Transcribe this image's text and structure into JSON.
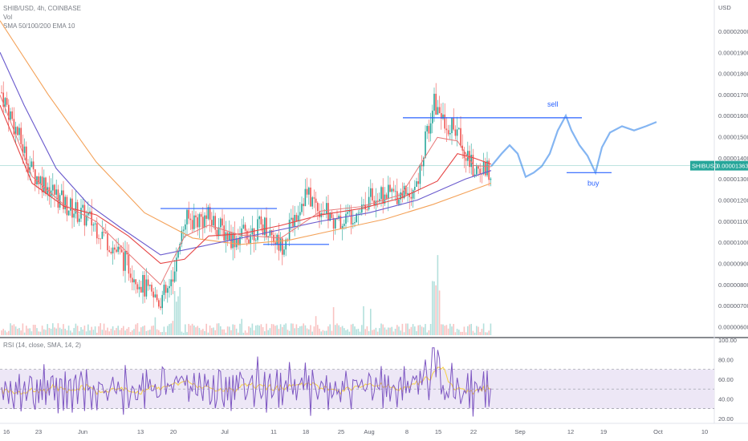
{
  "legend": {
    "title": "SHIB/USD, 4h, COINBASE",
    "vol": "Vol",
    "ma": "SMA 50/100/200 EMA 10"
  },
  "rsi_legend": "RSI (14, close, SMA, 14, 2)",
  "colors": {
    "candle_up": "#26a69a",
    "candle_down": "#ef5350",
    "sma50": "#e64545",
    "sma100": "#6a5acd",
    "sma200": "#f4a259",
    "ema10": "#e77a7a",
    "projection": "#6fa8f0",
    "annotation": "#2962ff",
    "price_line": "#26a69a",
    "rsi_line": "#7e57c2",
    "rsi_ma": "#f7d046",
    "rsi_band": "#ede7f6"
  },
  "price_tag": {
    "symbol": "SHIBUSD",
    "value": "0.00001363"
  },
  "chart_data": [
    {
      "type": "candlestick",
      "title": "SHIB/USD, 4h, COINBASE",
      "y_unit": "USD",
      "ylim": [
        5.6e-06,
        2.11e-05
      ],
      "y_ticks": [
        "0.00000600",
        "0.00000700",
        "0.00000800",
        "0.00000900",
        "0.00001000",
        "0.00001100",
        "0.00001200",
        "0.00001300",
        "0.00001400",
        "0.00001500",
        "0.00001600",
        "0.00001700",
        "0.00001800",
        "0.00001900",
        "0.00002000"
      ],
      "x_ticks": [
        "16",
        "23",
        "Jun",
        "13",
        "20",
        "Jul",
        "11",
        "18",
        "25",
        "Aug",
        "8",
        "15",
        "22",
        "Sep",
        "12",
        "19",
        "Oct",
        "10"
      ],
      "annotations": [
        {
          "text": "sell",
          "level": 1.59e-05
        },
        {
          "text": "buy",
          "level": 1.33e-05
        }
      ],
      "key_levels": [
        1.59e-05,
        1.33e-05,
        1.16e-05,
        9.9e-06
      ],
      "last_price": 1.363e-05,
      "series": [
        {
          "name": "SMA 200",
          "points": [
            [
              0,
              2.05e-05
            ],
            [
              60,
              1.7e-05
            ],
            [
              120,
              1.38e-05
            ],
            [
              180,
              1.14e-05
            ],
            [
              240,
              1.02e-05
            ],
            [
              300,
              9.9e-06
            ],
            [
              360,
              1.01e-05
            ],
            [
              420,
              1.06e-05
            ],
            [
              480,
              1.11e-05
            ],
            [
              540,
              1.18e-05
            ],
            [
              612,
              1.28e-05
            ]
          ]
        },
        {
          "name": "SMA 100",
          "points": [
            [
              0,
              1.9e-05
            ],
            [
              30,
              1.65e-05
            ],
            [
              70,
              1.35e-05
            ],
            [
              110,
              1.18e-05
            ],
            [
              150,
              1.07e-05
            ],
            [
              200,
              9.4e-06
            ],
            [
              250,
              9.8e-06
            ],
            [
              300,
              1.02e-05
            ],
            [
              350,
              1.06e-05
            ],
            [
              400,
              1.1e-05
            ],
            [
              460,
              1.14e-05
            ],
            [
              520,
              1.2e-05
            ],
            [
              580,
              1.3e-05
            ],
            [
              612,
              1.34e-05
            ]
          ]
        },
        {
          "name": "SMA 50",
          "points": [
            [
              0,
              1.65e-05
            ],
            [
              40,
              1.28e-05
            ],
            [
              80,
              1.17e-05
            ],
            [
              120,
              1.13e-05
            ],
            [
              160,
              1.03e-05
            ],
            [
              200,
              9e-06
            ],
            [
              230,
              9.2e-06
            ],
            [
              260,
              1.03e-05
            ],
            [
              300,
              1.04e-05
            ],
            [
              350,
              1.08e-05
            ],
            [
              400,
              1.13e-05
            ],
            [
              450,
              1.16e-05
            ],
            [
              500,
              1.21e-05
            ],
            [
              545,
              1.29e-05
            ],
            [
              570,
              1.42e-05
            ],
            [
              590,
              1.4e-05
            ],
            [
              612,
              1.37e-05
            ]
          ]
        },
        {
          "name": "Projection",
          "points": [
            [
              612,
              1.36e-05
            ],
            [
              625,
              1.42e-05
            ],
            [
              635,
              1.46e-05
            ],
            [
              645,
              1.42e-05
            ],
            [
              655,
              1.31e-05
            ],
            [
              665,
              1.33e-05
            ],
            [
              675,
              1.36e-05
            ],
            [
              685,
              1.42e-05
            ],
            [
              695,
              1.53e-05
            ],
            [
              705,
              1.6e-05
            ],
            [
              712,
              1.53e-05
            ],
            [
              722,
              1.46e-05
            ],
            [
              732,
              1.41e-05
            ],
            [
              742,
              1.33e-05
            ],
            [
              750,
              1.45e-05
            ],
            [
              760,
              1.52e-05
            ],
            [
              775,
              1.55e-05
            ],
            [
              790,
              1.53e-05
            ],
            [
              805,
              1.55e-05
            ],
            [
              818,
              1.57e-05
            ]
          ]
        }
      ]
    },
    {
      "type": "line",
      "title": "RSI (14, close, SMA, 14, 2)",
      "ylim": [
        15,
        100
      ],
      "y_ticks": [
        "20.00",
        "40.00",
        "60.00",
        "80.00",
        "100.00"
      ],
      "bands": [
        70,
        50,
        30
      ]
    }
  ]
}
